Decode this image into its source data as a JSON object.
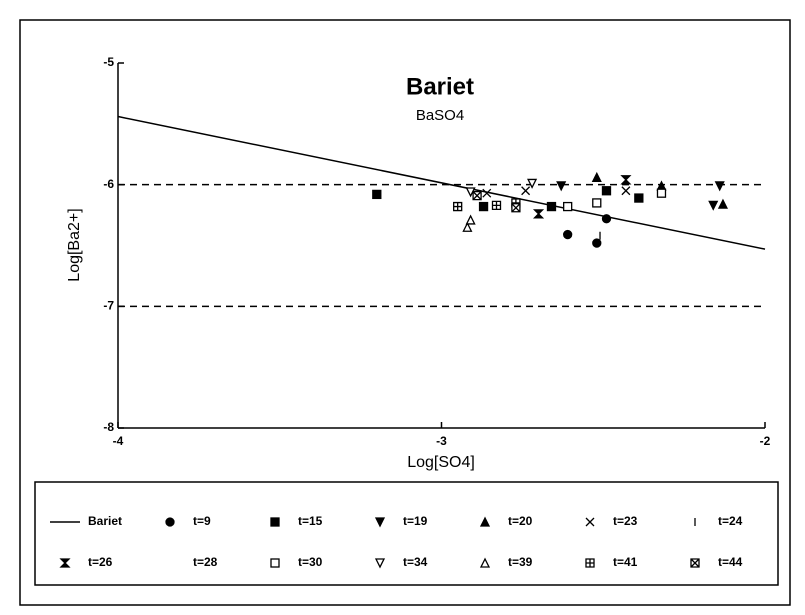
{
  "chart_data": {
    "type": "scatter",
    "title": "Bariet",
    "subtitle": "BaSO4",
    "x_label": "Log[SO4]",
    "y_label": "Log[Ba2+]",
    "xlim": [
      -4,
      -2
    ],
    "xticks": [
      -4,
      -3,
      -2
    ],
    "ylim": [
      -8,
      -5
    ],
    "yticks": [
      -8,
      -7,
      -6,
      -5
    ],
    "reference_lines": [
      -6,
      -7
    ],
    "legend": "bottom",
    "series": [
      {
        "name": "Bariet",
        "marker": "line",
        "color": "#000000",
        "x": [
          -4,
          -2
        ],
        "y": [
          -5.44,
          -6.53
        ]
      },
      {
        "name": "t=9",
        "marker": "circle",
        "color": "#000000",
        "x": [
          -2.61,
          -2.52,
          -2.49
        ],
        "y": [
          -6.41,
          -6.48,
          -6.28
        ]
      },
      {
        "name": "t=15",
        "marker": "square",
        "color": "#000000",
        "x": [
          -3.2,
          -2.87,
          -2.66,
          -2.49,
          -2.39
        ],
        "y": [
          -6.08,
          -6.18,
          -6.18,
          -6.05,
          -6.11
        ]
      },
      {
        "name": "t=19",
        "marker": "triangle-down",
        "color": "#000000",
        "x": [
          -2.63,
          -2.14,
          -2.16
        ],
        "y": [
          -6.01,
          -6.01,
          -6.17
        ]
      },
      {
        "name": "t=20",
        "marker": "triangle-up",
        "color": "#000000",
        "x": [
          -2.52,
          -2.32,
          -2.13
        ],
        "y": [
          -5.94,
          -6.01,
          -6.16
        ]
      },
      {
        "name": "t=23",
        "marker": "x",
        "color": "#000000",
        "x": [
          -2.86,
          -2.74,
          -2.43
        ],
        "y": [
          -6.07,
          -6.05,
          -6.05
        ]
      },
      {
        "name": "t=24",
        "marker": "bar",
        "color": "#000000",
        "x": [
          -2.51
        ],
        "y": [
          -6.42
        ]
      },
      {
        "name": "t=26",
        "marker": "hourglass",
        "color": "#000000",
        "x": [
          -2.7,
          -2.43
        ],
        "y": [
          -6.24,
          -5.96
        ]
      },
      {
        "name": "t=28",
        "marker": "none",
        "color": "#000000",
        "x": [],
        "y": []
      },
      {
        "name": "t=30",
        "marker": "open-square",
        "color": "#000000",
        "x": [
          -2.61,
          -2.52,
          -2.32
        ],
        "y": [
          -6.18,
          -6.15,
          -6.07
        ]
      },
      {
        "name": "t=34",
        "marker": "open-triangle-down",
        "color": "#000000",
        "x": [
          -2.91,
          -2.72
        ],
        "y": [
          -6.06,
          -5.99
        ]
      },
      {
        "name": "t=39",
        "marker": "open-triangle-up",
        "color": "#000000",
        "x": [
          -2.92,
          -2.91
        ],
        "y": [
          -6.35,
          -6.29
        ]
      },
      {
        "name": "t=41",
        "marker": "square-plus",
        "color": "#000000",
        "x": [
          -2.95,
          -2.83,
          -2.77
        ],
        "y": [
          -6.18,
          -6.17,
          -6.15
        ]
      },
      {
        "name": "t=44",
        "marker": "square-x",
        "color": "#000000",
        "x": [
          -2.89,
          -2.77
        ],
        "y": [
          -6.09,
          -6.19
        ]
      }
    ]
  }
}
